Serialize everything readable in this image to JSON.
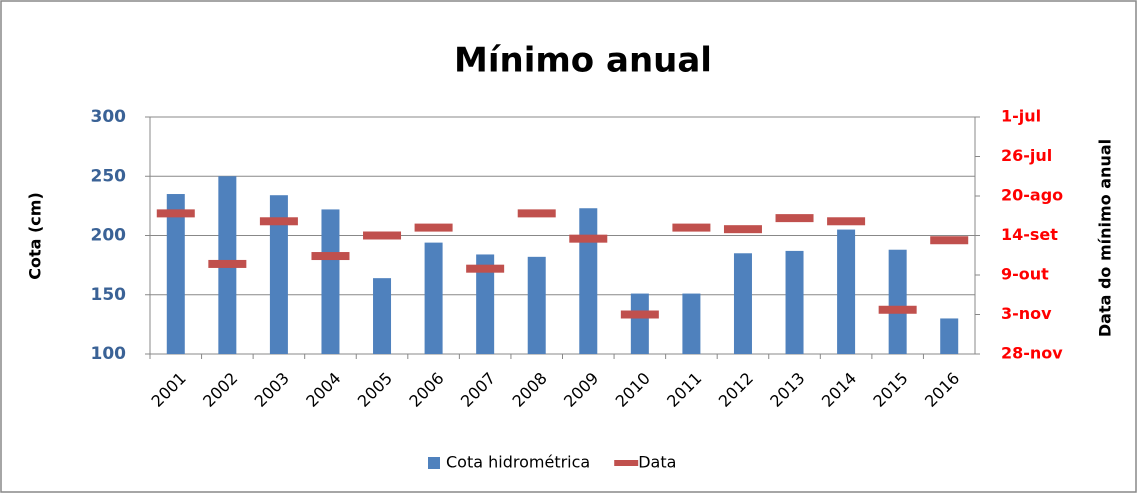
{
  "chart_data": {
    "type": "bar",
    "title": "Mínimo anual",
    "y_label": "Cota (cm)",
    "y2_label": "Data do mínimo anual",
    "categories": [
      "2001",
      "2002",
      "2003",
      "2004",
      "2005",
      "2006",
      "2007",
      "2008",
      "2009",
      "2010",
      "2011",
      "2012",
      "2013",
      "2014",
      "2015",
      "2016"
    ],
    "series": [
      {
        "name": "Cota hidrométrica",
        "color": "#4f81bd",
        "type": "bar",
        "values": [
          235,
          250,
          234,
          222,
          164,
          194,
          184,
          182,
          223,
          151,
          151,
          185,
          187,
          205,
          188,
          130
        ]
      },
      {
        "name": "Data",
        "color": "#c0504d",
        "type": "dash",
        "axis": "y2",
        "values": [
          243,
          275,
          248,
          270,
          257,
          252,
          278,
          243,
          259,
          307,
          252,
          253,
          246,
          248,
          304,
          260
        ]
      }
    ],
    "ylim": [
      100,
      300
    ],
    "yticks": [
      100,
      150,
      200,
      250,
      300
    ],
    "y2lim": [
      332,
      182
    ],
    "y2ticks": [
      {
        "value": 182,
        "label": "1-jul"
      },
      {
        "value": 207,
        "label": "26-jul"
      },
      {
        "value": 232,
        "label": "20-ago"
      },
      {
        "value": 257,
        "label": "14-set"
      },
      {
        "value": 282,
        "label": "9-out"
      },
      {
        "value": 307,
        "label": "3-nov"
      },
      {
        "value": 332,
        "label": "28-nov"
      }
    ],
    "grid": true,
    "legend": "bottom"
  }
}
